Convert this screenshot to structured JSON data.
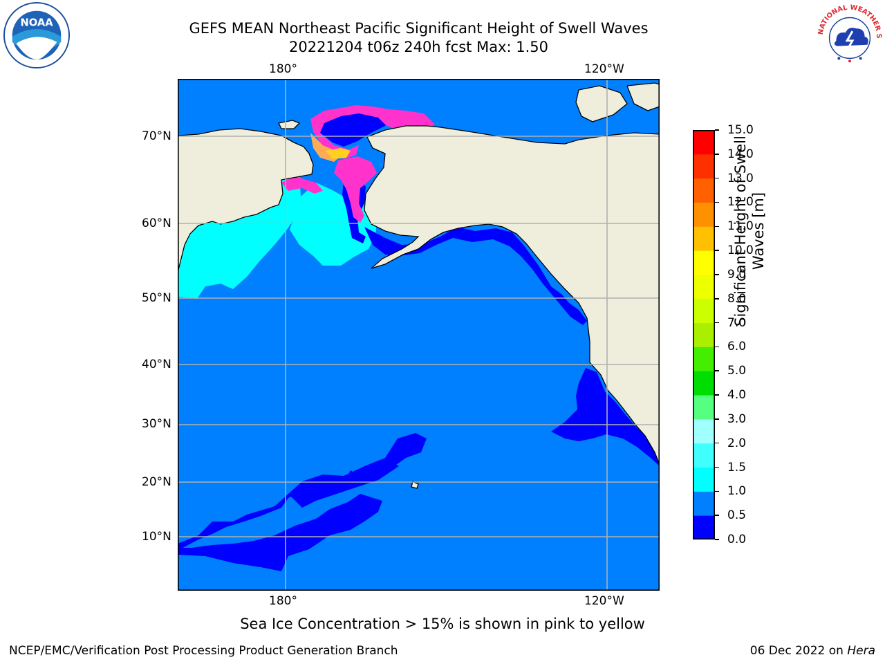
{
  "header": {
    "title_line1": "GEFS MEAN Northeast Pacific Significant Height of Swell Waves",
    "title_line2": "20221204 t06z 240h fcst   Max: 1.50"
  },
  "logos": {
    "left": "NOAA",
    "right": "NATIONAL WEATHER SERVICE"
  },
  "map": {
    "lon_ticks": [
      "180°",
      "120°W"
    ],
    "lat_ticks": [
      "70°N",
      "60°N",
      "50°N",
      "40°N",
      "30°N",
      "20°N",
      "10°N"
    ],
    "colors": {
      "ocean_main": "#0080ff",
      "ocean_low": "#0000ff",
      "ocean_high": "#00ffff",
      "land": "#efeedc",
      "ice_pink": "#ff33cc",
      "ice_orange": "#ffaa55",
      "ice_yellow": "#ffd020",
      "grid": "#b0b0b0"
    }
  },
  "colorbar": {
    "title": "Significant Height of Swell Waves [m]",
    "levels": [
      "0.0",
      "0.5",
      "1.0",
      "1.5",
      "2.0",
      "3.0",
      "4.0",
      "5.0",
      "6.0",
      "7.0",
      "8.0",
      "9.0",
      "10.0",
      "11.0",
      "12.0",
      "13.0",
      "14.0",
      "15.0"
    ],
    "colors": [
      "#0000ff",
      "#0080ff",
      "#00ffff",
      "#40ffff",
      "#a0ffff",
      "#55ff80",
      "#00dd00",
      "#44ee00",
      "#aaee00",
      "#ccff00",
      "#eeff00",
      "#ffff00",
      "#ffc000",
      "#ff9000",
      "#ff6000",
      "#ff3000",
      "#ff0000"
    ]
  },
  "footer": {
    "note": "Sea Ice Concentration > 15% is shown in pink to yellow",
    "credit": "NCEP/EMC/Verification Post Processing Product Generation Branch",
    "date_prefix": "06 Dec 2022 on ",
    "date_host": "Hera"
  }
}
